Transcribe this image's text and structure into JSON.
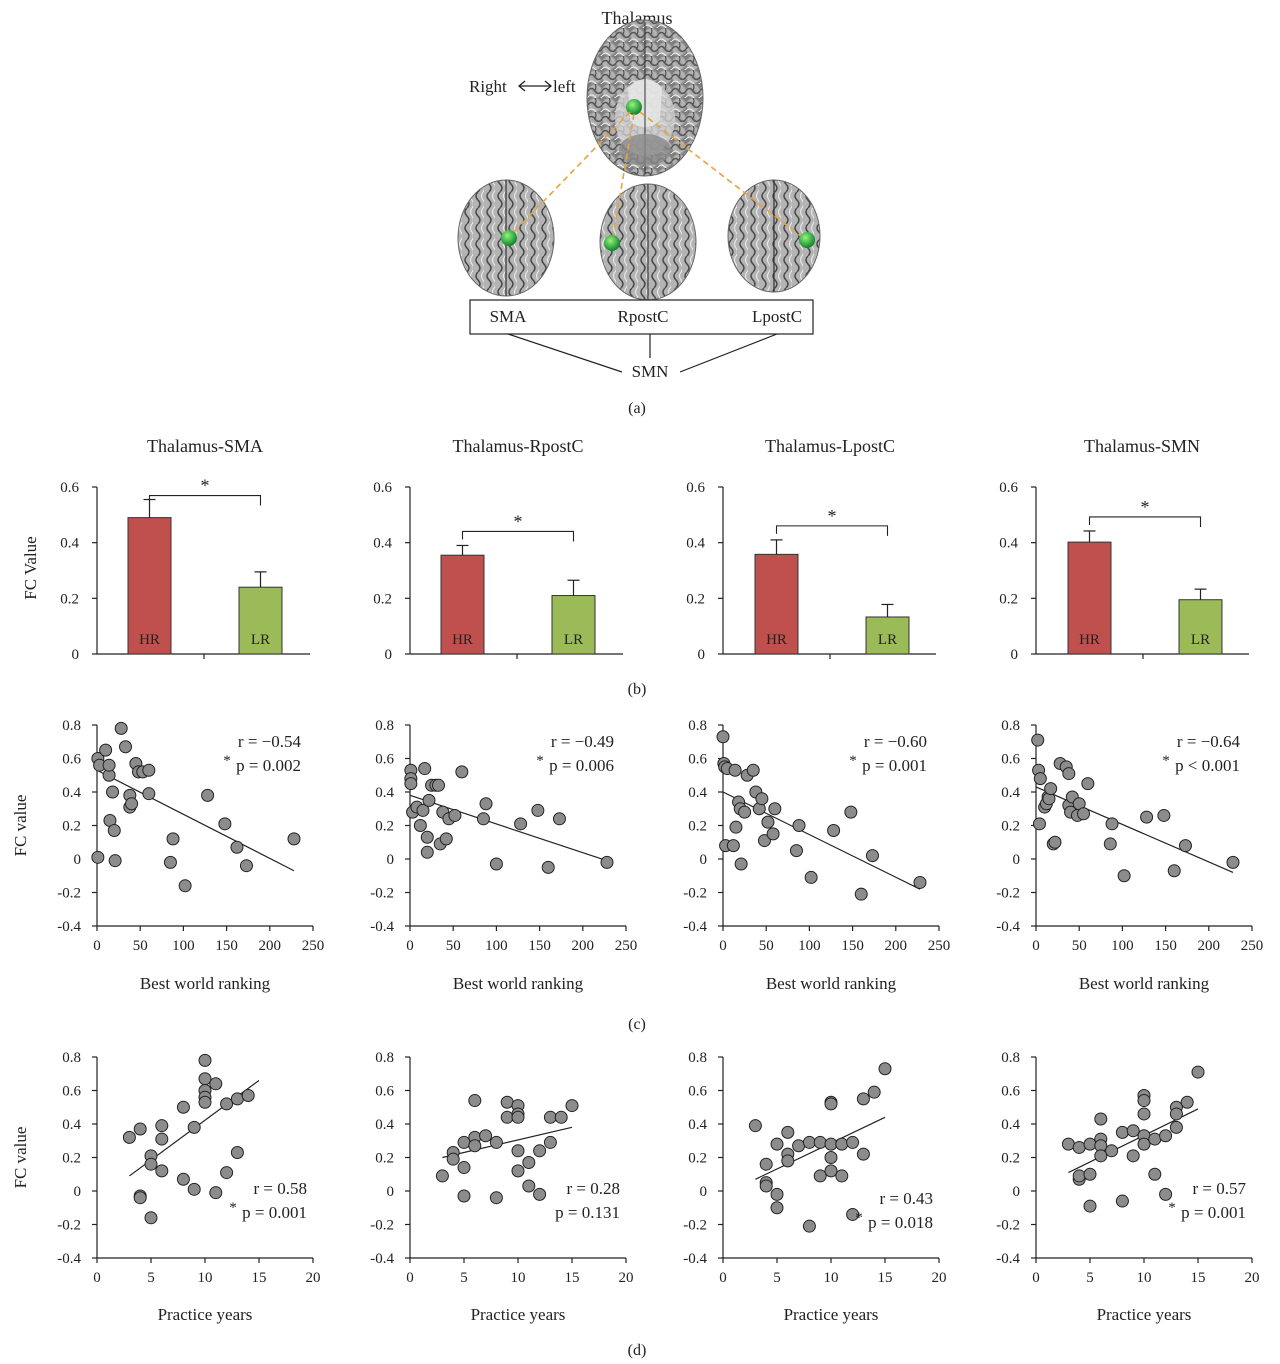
{
  "panel_a": {
    "title": "Thalamus",
    "orientation_right": "Right",
    "orientation_left": "left",
    "regions": [
      "SMA",
      "RpostC",
      "LpostC"
    ],
    "network": "SMN",
    "caption": "(a)",
    "colors": {
      "roi": "#39b54a",
      "connector": "#e8a33a"
    }
  },
  "captions": {
    "b": "(b)",
    "c": "(c)",
    "d": "(d)"
  },
  "colors": {
    "hr": "#c0504d",
    "lr": "#9bbb59",
    "point": "#8c8c8c",
    "star": "#e03030"
  },
  "chart_data": [
    {
      "type": "bar",
      "panel": "b",
      "title": "Thalamus-SMA",
      "ylabel": "FC Value",
      "categories": [
        "HR",
        "LR"
      ],
      "values": [
        0.49,
        0.24
      ],
      "errors": [
        0.065,
        0.055
      ],
      "significance": "*",
      "yticks": [
        "0.6",
        "0.4",
        "0.2",
        "0"
      ],
      "ylim": [
        0,
        0.6
      ]
    },
    {
      "type": "bar",
      "panel": "b",
      "title": "Thalamus-RpostC",
      "ylabel": "",
      "categories": [
        "HR",
        "LR"
      ],
      "values": [
        0.355,
        0.21
      ],
      "errors": [
        0.035,
        0.055
      ],
      "significance": "*",
      "yticks": [
        "0.6",
        "0.4",
        "0.2",
        "0"
      ],
      "ylim": [
        0,
        0.6
      ]
    },
    {
      "type": "bar",
      "panel": "b",
      "title": "Thalamus-LpostC",
      "ylabel": "",
      "categories": [
        "HR",
        "LR"
      ],
      "values": [
        0.358,
        0.133
      ],
      "errors": [
        0.052,
        0.045
      ],
      "significance": "*",
      "yticks": [
        "0.6",
        "0.4",
        "0.2",
        "0"
      ],
      "ylim": [
        0,
        0.6
      ]
    },
    {
      "type": "bar",
      "panel": "b",
      "title": "Thalamus-SMN",
      "ylabel": "",
      "categories": [
        "HR",
        "LR"
      ],
      "values": [
        0.402,
        0.195
      ],
      "errors": [
        0.04,
        0.038
      ],
      "significance": "*",
      "yticks": [
        "0.6",
        "0.4",
        "0.2",
        "0"
      ],
      "ylim": [
        0,
        0.6
      ]
    },
    {
      "type": "scatter",
      "panel": "c",
      "xlabel": "Best world ranking",
      "ylabel": "FC value",
      "xlim": [
        0,
        250
      ],
      "ylim": [
        -0.4,
        0.8
      ],
      "xticks": [
        "0",
        "50",
        "100",
        "150",
        "200",
        "250"
      ],
      "yticks": [
        "0.8",
        "0.6",
        "0.4",
        "0.2",
        "0",
        "-0.2",
        "-0.4"
      ],
      "r": "r = −0.54",
      "p": "p = 0.002",
      "significant": true,
      "fit": [
        [
          0,
          0.53
        ],
        [
          228,
          -0.07
        ]
      ],
      "points": [
        [
          1,
          0.6
        ],
        [
          1,
          0.01
        ],
        [
          3,
          0.56
        ],
        [
          10,
          0.65
        ],
        [
          14,
          0.5
        ],
        [
          14,
          0.56
        ],
        [
          15,
          0.23
        ],
        [
          18,
          0.4
        ],
        [
          20,
          0.17
        ],
        [
          21,
          -0.01
        ],
        [
          28,
          0.78
        ],
        [
          33,
          0.67
        ],
        [
          38,
          0.38
        ],
        [
          38,
          0.31
        ],
        [
          40,
          0.33
        ],
        [
          45,
          0.57
        ],
        [
          48,
          0.52
        ],
        [
          53,
          0.52
        ],
        [
          60,
          0.53
        ],
        [
          60,
          0.39
        ],
        [
          85,
          -0.02
        ],
        [
          88,
          0.12
        ],
        [
          102,
          -0.16
        ],
        [
          128,
          0.38
        ],
        [
          148,
          0.21
        ],
        [
          162,
          0.07
        ],
        [
          173,
          -0.04
        ],
        [
          228,
          0.12
        ]
      ]
    },
    {
      "type": "scatter",
      "panel": "c",
      "xlabel": "Best world ranking",
      "ylabel": "",
      "xlim": [
        0,
        250
      ],
      "ylim": [
        -0.4,
        0.8
      ],
      "xticks": [
        "0",
        "50",
        "100",
        "150",
        "200",
        "250"
      ],
      "yticks": [
        "0.8",
        "0.6",
        "0.4",
        "0.2",
        "0",
        "-0.2",
        "-0.4"
      ],
      "r": "r = −0.49",
      "p": "p = 0.006",
      "significant": true,
      "fit": [
        [
          0,
          0.38
        ],
        [
          228,
          -0.01
        ]
      ],
      "points": [
        [
          1,
          0.53
        ],
        [
          1,
          0.48
        ],
        [
          1,
          0.45
        ],
        [
          3,
          0.28
        ],
        [
          8,
          0.31
        ],
        [
          12,
          0.2
        ],
        [
          15,
          0.29
        ],
        [
          17,
          0.54
        ],
        [
          20,
          0.13
        ],
        [
          20,
          0.04
        ],
        [
          22,
          0.35
        ],
        [
          25,
          0.44
        ],
        [
          30,
          0.44
        ],
        [
          33,
          0.44
        ],
        [
          35,
          0.09
        ],
        [
          38,
          0.28
        ],
        [
          42,
          0.12
        ],
        [
          45,
          0.24
        ],
        [
          52,
          0.26
        ],
        [
          60,
          0.52
        ],
        [
          85,
          0.24
        ],
        [
          88,
          0.33
        ],
        [
          100,
          -0.03
        ],
        [
          128,
          0.21
        ],
        [
          148,
          0.29
        ],
        [
          160,
          -0.05
        ],
        [
          173,
          0.24
        ],
        [
          228,
          -0.02
        ]
      ]
    },
    {
      "type": "scatter",
      "panel": "c",
      "xlabel": "Best world ranking",
      "ylabel": "",
      "xlim": [
        0,
        250
      ],
      "ylim": [
        -0.4,
        0.8
      ],
      "xticks": [
        "0",
        "50",
        "100",
        "150",
        "200",
        "250"
      ],
      "yticks": [
        "0.8",
        "0.6",
        "0.4",
        "0.2",
        "0",
        "-0.2",
        "-0.4"
      ],
      "r": "r = −0.60",
      "p": "p = 0.001",
      "significant": true,
      "fit": [
        [
          0,
          0.4
        ],
        [
          228,
          -0.18
        ]
      ],
      "points": [
        [
          0,
          0.73
        ],
        [
          1,
          0.57
        ],
        [
          2,
          0.55
        ],
        [
          3,
          0.08
        ],
        [
          5,
          0.54
        ],
        [
          12,
          0.08
        ],
        [
          14,
          0.53
        ],
        [
          15,
          0.19
        ],
        [
          18,
          0.34
        ],
        [
          20,
          0.3
        ],
        [
          21,
          -0.03
        ],
        [
          25,
          0.28
        ],
        [
          28,
          0.5
        ],
        [
          35,
          0.53
        ],
        [
          38,
          0.4
        ],
        [
          42,
          0.3
        ],
        [
          45,
          0.36
        ],
        [
          48,
          0.11
        ],
        [
          52,
          0.22
        ],
        [
          58,
          0.15
        ],
        [
          60,
          0.3
        ],
        [
          85,
          0.05
        ],
        [
          88,
          0.2
        ],
        [
          102,
          -0.11
        ],
        [
          128,
          0.17
        ],
        [
          148,
          0.28
        ],
        [
          160,
          -0.21
        ],
        [
          173,
          0.02
        ],
        [
          228,
          -0.14
        ]
      ]
    },
    {
      "type": "scatter",
      "panel": "c",
      "xlabel": "Best world ranking",
      "ylabel": "",
      "xlim": [
        0,
        250
      ],
      "ylim": [
        -0.4,
        0.8
      ],
      "xticks": [
        "0",
        "50",
        "100",
        "150",
        "200",
        "250"
      ],
      "yticks": [
        "0.8",
        "0.6",
        "0.4",
        "0.2",
        "0",
        "-0.2",
        "-0.4"
      ],
      "r": "r = −0.64",
      "p": "p < 0.001",
      "significant": true,
      "fit": [
        [
          0,
          0.43
        ],
        [
          228,
          -0.08
        ]
      ],
      "points": [
        [
          2,
          0.71
        ],
        [
          3,
          0.53
        ],
        [
          4,
          0.21
        ],
        [
          5,
          0.48
        ],
        [
          10,
          0.31
        ],
        [
          12,
          0.33
        ],
        [
          14,
          0.37
        ],
        [
          15,
          0.36
        ],
        [
          17,
          0.42
        ],
        [
          20,
          0.09
        ],
        [
          22,
          0.1
        ],
        [
          28,
          0.57
        ],
        [
          35,
          0.55
        ],
        [
          38,
          0.51
        ],
        [
          38,
          0.32
        ],
        [
          40,
          0.28
        ],
        [
          42,
          0.37
        ],
        [
          48,
          0.26
        ],
        [
          50,
          0.33
        ],
        [
          55,
          0.27
        ],
        [
          60,
          0.45
        ],
        [
          86,
          0.09
        ],
        [
          88,
          0.21
        ],
        [
          102,
          -0.1
        ],
        [
          128,
          0.25
        ],
        [
          148,
          0.26
        ],
        [
          160,
          -0.07
        ],
        [
          173,
          0.08
        ],
        [
          228,
          -0.02
        ]
      ]
    },
    {
      "type": "scatter",
      "panel": "d",
      "xlabel": "Practice years",
      "ylabel": "FC value",
      "xlim": [
        0,
        20
      ],
      "ylim": [
        -0.4,
        0.8
      ],
      "xticks": [
        "0",
        "5",
        "10",
        "15",
        "20"
      ],
      "yticks": [
        "0.8",
        "0.6",
        "0.4",
        "0.2",
        "0",
        "-0.2",
        "-0.4"
      ],
      "r": "r = 0.58",
      "p": "p = 0.001",
      "significant": true,
      "fit": [
        [
          3,
          0.09
        ],
        [
          15,
          0.66
        ]
      ],
      "points": [
        [
          3,
          0.32
        ],
        [
          4,
          0.37
        ],
        [
          4,
          -0.03
        ],
        [
          4,
          -0.04
        ],
        [
          5,
          0.21
        ],
        [
          5,
          0.16
        ],
        [
          5,
          -0.16
        ],
        [
          6,
          0.39
        ],
        [
          6,
          0.31
        ],
        [
          6,
          0.12
        ],
        [
          8,
          0.5
        ],
        [
          8,
          0.07
        ],
        [
          9,
          0.38
        ],
        [
          9,
          0.01
        ],
        [
          10,
          0.78
        ],
        [
          10,
          0.67
        ],
        [
          10,
          0.6
        ],
        [
          10,
          0.56
        ],
        [
          10,
          0.53
        ],
        [
          11,
          0.64
        ],
        [
          11,
          -0.01
        ],
        [
          12,
          0.52
        ],
        [
          12,
          0.11
        ],
        [
          13,
          0.55
        ],
        [
          13,
          0.23
        ],
        [
          14,
          0.57
        ]
      ]
    },
    {
      "type": "scatter",
      "panel": "d",
      "xlabel": "Practice years",
      "ylabel": "",
      "xlim": [
        0,
        20
      ],
      "ylim": [
        -0.4,
        0.8
      ],
      "xticks": [
        "0",
        "5",
        "10",
        "15",
        "20"
      ],
      "yticks": [
        "0.8",
        "0.6",
        "0.4",
        "0.2",
        "0",
        "-0.2",
        "-0.4"
      ],
      "r": "r = 0.28",
      "p": "p = 0.131",
      "significant": false,
      "fit": [
        [
          3,
          0.2
        ],
        [
          15,
          0.38
        ]
      ],
      "points": [
        [
          3,
          0.09
        ],
        [
          4,
          0.23
        ],
        [
          4,
          0.19
        ],
        [
          5,
          0.29
        ],
        [
          5,
          0.14
        ],
        [
          5,
          -0.03
        ],
        [
          6,
          0.54
        ],
        [
          6,
          0.32
        ],
        [
          6,
          0.27
        ],
        [
          7,
          0.33
        ],
        [
          8,
          0.29
        ],
        [
          8,
          -0.04
        ],
        [
          9,
          0.53
        ],
        [
          9,
          0.44
        ],
        [
          10,
          0.51
        ],
        [
          10,
          0.46
        ],
        [
          10,
          0.44
        ],
        [
          10,
          0.24
        ],
        [
          10,
          0.12
        ],
        [
          11,
          0.17
        ],
        [
          11,
          0.03
        ],
        [
          12,
          0.24
        ],
        [
          12,
          -0.02
        ],
        [
          13,
          0.44
        ],
        [
          13,
          0.29
        ],
        [
          14,
          0.44
        ],
        [
          15,
          0.51
        ]
      ]
    },
    {
      "type": "scatter",
      "panel": "d",
      "xlabel": "Practice years",
      "ylabel": "",
      "xlim": [
        0,
        20
      ],
      "ylim": [
        -0.4,
        0.8
      ],
      "xticks": [
        "0",
        "5",
        "10",
        "15",
        "20"
      ],
      "yticks": [
        "0.8",
        "0.6",
        "0.4",
        "0.2",
        "0",
        "-0.2",
        "-0.4"
      ],
      "r": "r = 0.43",
      "p": "p = 0.018",
      "significant": true,
      "fit": [
        [
          3,
          0.07
        ],
        [
          15,
          0.44
        ]
      ],
      "points": [
        [
          3,
          0.39
        ],
        [
          4,
          0.16
        ],
        [
          4,
          0.05
        ],
        [
          4,
          0.03
        ],
        [
          5,
          0.28
        ],
        [
          5,
          -0.02
        ],
        [
          5,
          -0.1
        ],
        [
          6,
          0.35
        ],
        [
          6,
          0.22
        ],
        [
          6,
          0.18
        ],
        [
          7,
          0.27
        ],
        [
          8,
          0.29
        ],
        [
          8,
          -0.21
        ],
        [
          9,
          0.29
        ],
        [
          9,
          0.09
        ],
        [
          10,
          0.53
        ],
        [
          10,
          0.52
        ],
        [
          10,
          0.28
        ],
        [
          10,
          0.2
        ],
        [
          10,
          0.12
        ],
        [
          11,
          0.28
        ],
        [
          11,
          0.09
        ],
        [
          12,
          0.29
        ],
        [
          12,
          -0.14
        ],
        [
          13,
          0.55
        ],
        [
          13,
          0.22
        ],
        [
          14,
          0.59
        ],
        [
          15,
          0.73
        ]
      ]
    },
    {
      "type": "scatter",
      "panel": "d",
      "xlabel": "Practice years",
      "ylabel": "",
      "xlim": [
        0,
        20
      ],
      "ylim": [
        -0.4,
        0.8
      ],
      "xticks": [
        "0",
        "5",
        "10",
        "15",
        "20"
      ],
      "yticks": [
        "0.8",
        "0.6",
        "0.4",
        "0.2",
        "0",
        "-0.2",
        "-0.4"
      ],
      "r": "r = 0.57",
      "p": "p = 0.001",
      "significant": true,
      "fit": [
        [
          3,
          0.11
        ],
        [
          15,
          0.49
        ]
      ],
      "points": [
        [
          3,
          0.28
        ],
        [
          4,
          0.26
        ],
        [
          4,
          0.07
        ],
        [
          4,
          0.09
        ],
        [
          5,
          0.28
        ],
        [
          5,
          0.1
        ],
        [
          5,
          -0.09
        ],
        [
          6,
          0.43
        ],
        [
          6,
          0.31
        ],
        [
          6,
          0.27
        ],
        [
          6,
          0.21
        ],
        [
          7,
          0.24
        ],
        [
          8,
          0.35
        ],
        [
          8,
          -0.06
        ],
        [
          9,
          0.36
        ],
        [
          9,
          0.21
        ],
        [
          10,
          0.57
        ],
        [
          10,
          0.54
        ],
        [
          10,
          0.46
        ],
        [
          10,
          0.33
        ],
        [
          10,
          0.28
        ],
        [
          11,
          0.31
        ],
        [
          11,
          0.1
        ],
        [
          12,
          0.33
        ],
        [
          12,
          -0.02
        ],
        [
          13,
          0.5
        ],
        [
          13,
          0.46
        ],
        [
          13,
          0.38
        ],
        [
          14,
          0.53
        ],
        [
          15,
          0.71
        ]
      ]
    }
  ]
}
